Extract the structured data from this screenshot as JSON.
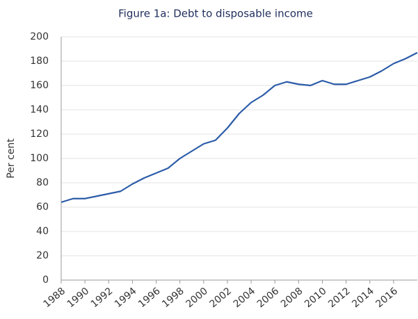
{
  "chart_data": {
    "type": "line",
    "title": "Figure 1a: Debt to disposable income",
    "y_label": "Per cent",
    "x": [
      1988,
      1989,
      1990,
      1991,
      1992,
      1993,
      1994,
      1995,
      1996,
      1997,
      1998,
      1999,
      2000,
      2001,
      2002,
      2003,
      2004,
      2005,
      2006,
      2007,
      2008,
      2009,
      2010,
      2011,
      2012,
      2013,
      2014,
      2015,
      2016,
      2017,
      2018
    ],
    "series": [
      {
        "name": "Debt to disposable income",
        "color": "#2b5ba8",
        "values": [
          64,
          67,
          67,
          69,
          71,
          73,
          79,
          84,
          88,
          92,
          100,
          106,
          112,
          115,
          125,
          137,
          146,
          152,
          160,
          163,
          161,
          160,
          164,
          161,
          161,
          164,
          167,
          172,
          178,
          182,
          187
        ]
      }
    ],
    "xlim": [
      1988,
      2018
    ],
    "xticks": [
      1988,
      1990,
      1992,
      1994,
      1996,
      1998,
      2000,
      2002,
      2004,
      2006,
      2008,
      2010,
      2012,
      2014,
      2016
    ],
    "ylim": [
      0,
      200
    ],
    "yticks": [
      0,
      20,
      40,
      60,
      80,
      100,
      120,
      140,
      160,
      180,
      200
    ],
    "grid": true
  }
}
